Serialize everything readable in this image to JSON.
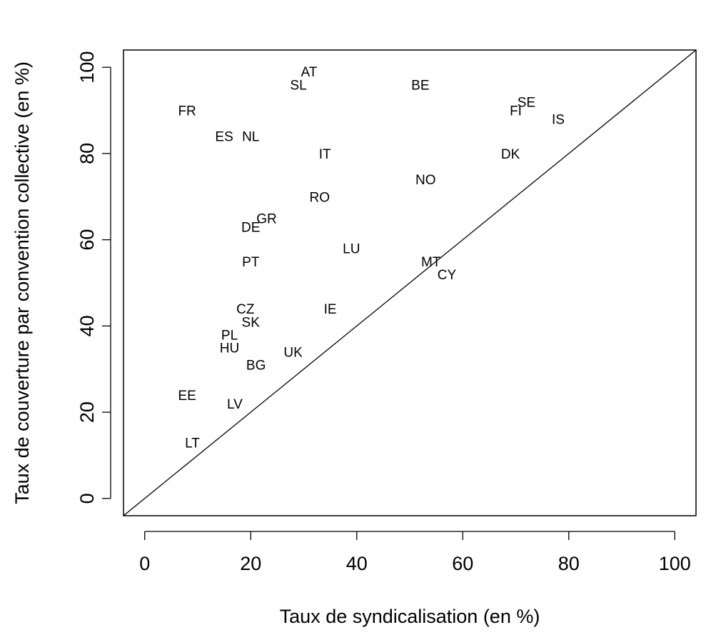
{
  "chart_data": {
    "type": "scatter",
    "xlabel": "Taux de syndicalisation (en %)",
    "ylabel": "Taux de couverture par convention collective (en %)",
    "xlim": [
      -4,
      104
    ],
    "ylim": [
      -4,
      104
    ],
    "x_ticks": [
      0,
      20,
      40,
      60,
      80,
      100
    ],
    "y_ticks": [
      0,
      20,
      40,
      60,
      80,
      100
    ],
    "reference_line": "y = x",
    "points": [
      {
        "label": "AT",
        "x": 31,
        "y": 99
      },
      {
        "label": "SL",
        "x": 29,
        "y": 96
      },
      {
        "label": "BE",
        "x": 52,
        "y": 96
      },
      {
        "label": "SE",
        "x": 72,
        "y": 92
      },
      {
        "label": "FI",
        "x": 70,
        "y": 90
      },
      {
        "label": "IS",
        "x": 78,
        "y": 88
      },
      {
        "label": "FR",
        "x": 8,
        "y": 90
      },
      {
        "label": "ES",
        "x": 15,
        "y": 84
      },
      {
        "label": "NL",
        "x": 20,
        "y": 84
      },
      {
        "label": "IT",
        "x": 34,
        "y": 80
      },
      {
        "label": "DK",
        "x": 69,
        "y": 80
      },
      {
        "label": "NO",
        "x": 53,
        "y": 74
      },
      {
        "label": "RO",
        "x": 33,
        "y": 70
      },
      {
        "label": "GR",
        "x": 23,
        "y": 65
      },
      {
        "label": "DE",
        "x": 20,
        "y": 63
      },
      {
        "label": "LU",
        "x": 39,
        "y": 58
      },
      {
        "label": "PT",
        "x": 20,
        "y": 55
      },
      {
        "label": "MT",
        "x": 54,
        "y": 55
      },
      {
        "label": "CY",
        "x": 57,
        "y": 52
      },
      {
        "label": "IE",
        "x": 35,
        "y": 44
      },
      {
        "label": "CZ",
        "x": 19,
        "y": 44
      },
      {
        "label": "SK",
        "x": 20,
        "y": 41
      },
      {
        "label": "PL",
        "x": 16,
        "y": 38
      },
      {
        "label": "HU",
        "x": 16,
        "y": 35
      },
      {
        "label": "UK",
        "x": 28,
        "y": 34
      },
      {
        "label": "BG",
        "x": 21,
        "y": 31
      },
      {
        "label": "EE",
        "x": 8,
        "y": 24
      },
      {
        "label": "LV",
        "x": 17,
        "y": 22
      },
      {
        "label": "LT",
        "x": 9,
        "y": 13
      }
    ]
  }
}
